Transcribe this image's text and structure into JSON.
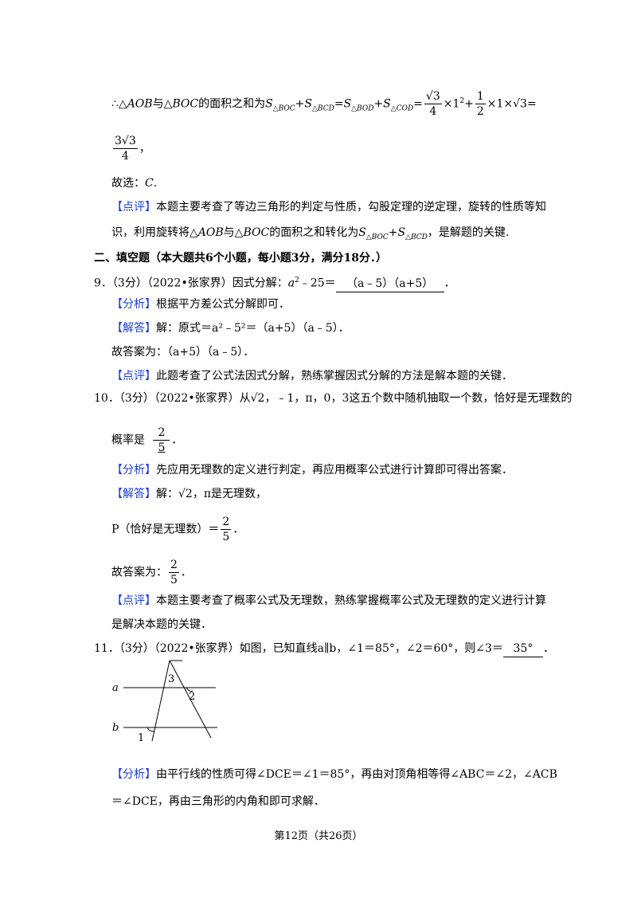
{
  "p1": {
    "pre": "∴△",
    "aob": "AOB",
    "mid": "与△",
    "boc": "BOC",
    "mid2": "的面积之和为",
    "s": "S",
    "sub1": "△BOC",
    "plus": "+",
    "sub2": "△BCD",
    "eq": "=",
    "sub3": "△BOD",
    "sub4": "△COD",
    "num1": "√3",
    "den1": "4",
    "times1": "×1",
    "sup1": "2",
    "num2": "1",
    "den2": "2",
    "tail": "×1×√3="
  },
  "p2": {
    "num": "3√3",
    "den": "4",
    "tail": "，"
  },
  "p3": {
    "text": "故选：",
    "ans": "C",
    "end": "."
  },
  "p4": {
    "tag": "【点评】",
    "text": "本题主要考查了等边三角形的判定与性质，勾股定理的逆定理，旋转的性质等知",
    "text2a": "识，利用旋转将△",
    "aob": "AOB",
    "text2b": "与△",
    "boc": "BOC",
    "text2c": "的面积之和转化为",
    "s": "S",
    "sub1": "△BOC",
    "sub2": "△BCD",
    "text2d": "，是解题的关键."
  },
  "section": "二、填空题（本大题共6个小题，每小题3分，满分18分．）",
  "q9": {
    "num": "9．",
    "src": "（3分）（2022•张家界）因式分解：",
    "a": "a",
    "sup": "2",
    "rest": "﹣25＝",
    "ans": "（a﹣5）（a+5）",
    "end": "．",
    "analysis_tag": "【分析】",
    "analysis": "根据平方差公式分解即可．",
    "answer_tag": "【解答】",
    "answer": "解：原式＝a²﹣5²＝（a+5）（a﹣5）．",
    "final": "故答案为：（a+5）（a﹣5）．",
    "review_tag": "【点评】",
    "review": "此题考查了公式法因式分解，熟练掌握因式分解的方法是解本题的关键．"
  },
  "q10": {
    "num": "10．",
    "src": "（3分）（2022•张家界）从√2，﹣1，π，0，3这五个数中随机抽取一个数，恰好是无理数的",
    "line2": "概率是",
    "ans_num": "2",
    "ans_den": "5",
    "end": "．",
    "analysis_tag": "【分析】",
    "analysis": "先应用无理数的定义进行判定，再应用概率公式进行计算即可得出答案．",
    "answer_tag": "【解答】",
    "answer": "解：√2，π是无理数，",
    "p_text": "P（恰好是无理数）＝",
    "p_num": "2",
    "p_den": "5",
    "p_end": "．",
    "final": "故答案为：",
    "final_num": "2",
    "final_den": "5",
    "final_end": "．",
    "review_tag": "【点评】",
    "review": "本题主要考查了概率公式及无理数，熟练掌握概率公式及无理数的定义进行计算",
    "review2": "是解决本题的关键．"
  },
  "q11": {
    "num": "11．",
    "src": "（3分）（2022•张家界）如图，已知直线a∥b，∠1＝85°，∠2＝60°，则∠3＝",
    "ans": "35°",
    "end": "．",
    "fig_a": "a",
    "fig_b": "b",
    "fig_1": "1",
    "fig_2": "2",
    "fig_3": "3",
    "analysis_tag": "【分析】",
    "analysis": "由平行线的性质可得∠DCE＝∠1＝85°，再由对顶角相等得∠ABC＝∠2，∠ACB",
    "analysis2": "＝∠DCE，再由三角形的内角和即可求解．"
  },
  "footer": "第12页（共26页）"
}
